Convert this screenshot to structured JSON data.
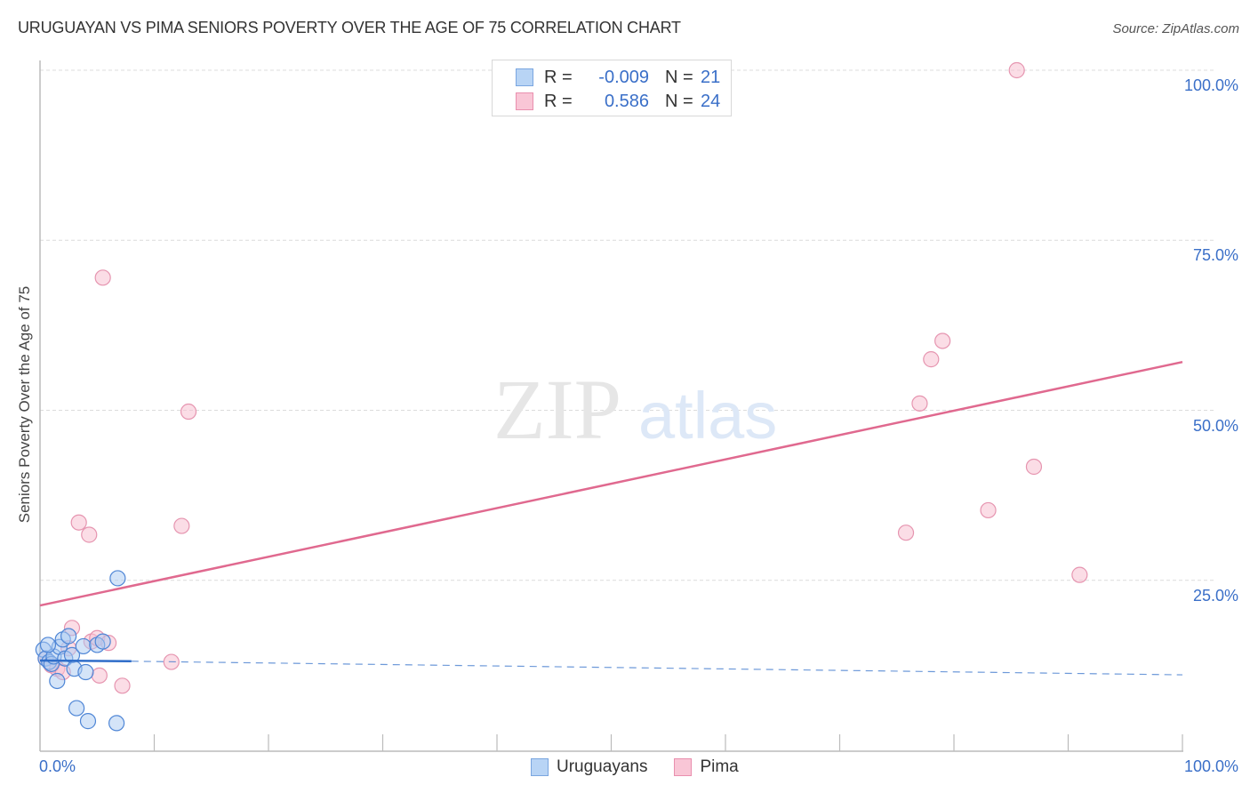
{
  "header": {
    "title": "URUGUAYAN VS PIMA SENIORS POVERTY OVER THE AGE OF 75 CORRELATION CHART",
    "source": "Source: ZipAtlas.com"
  },
  "watermark": {
    "zip": "ZIP",
    "atlas": "atlas"
  },
  "legend": {
    "rows": [
      {
        "r_label": "R =",
        "r_value": "-0.009",
        "n_label": "N =",
        "n_value": "21",
        "fill": "#b8d4f5",
        "stroke": "#7aa6e0"
      },
      {
        "r_label": "R =",
        "r_value": "0.586",
        "n_label": "N =",
        "n_value": "24",
        "fill": "#f9c6d6",
        "stroke": "#e98fae"
      }
    ]
  },
  "bottom_legend": [
    {
      "label": "Uruguayans",
      "fill": "#b8d4f5",
      "stroke": "#7aa6e0"
    },
    {
      "label": "Pima",
      "fill": "#f9c6d6",
      "stroke": "#e98fae"
    }
  ],
  "axes": {
    "x_min_label": "0.0%",
    "x_max_label": "100.0%",
    "y_ticks": [
      "100.0%",
      "75.0%",
      "50.0%",
      "25.0%"
    ],
    "ylabel": "Seniors Poverty Over the Age of 75"
  },
  "colors": {
    "blue_fill": "#a9c9f2",
    "blue_stroke": "#4f86d6",
    "blue_line": "#2f6dc9",
    "pink_fill": "#f7c1d2",
    "pink_stroke": "#e695b0",
    "pink_line": "#e0698f",
    "axis_text": "#3a6fc8",
    "grid": "#dcdcdc"
  },
  "chart_data": {
    "type": "scatter",
    "title": "URUGUAYAN VS PIMA SENIORS POVERTY OVER THE AGE OF 75 CORRELATION CHART",
    "xlabel": "",
    "ylabel": "Seniors Poverty Over the Age of 75",
    "xlim": [
      0,
      100
    ],
    "ylim": [
      0,
      100
    ],
    "x_tick_labels": [
      "0.0%",
      "100.0%"
    ],
    "y_tick_labels": [
      "25.0%",
      "50.0%",
      "75.0%",
      "100.0%"
    ],
    "grid": true,
    "legend_position": "bottom-center",
    "series": [
      {
        "name": "Uruguayans",
        "R": -0.009,
        "N": 21,
        "points": [
          [
            0.3,
            14.8
          ],
          [
            0.5,
            13.5
          ],
          [
            0.8,
            13.0
          ],
          [
            1.0,
            12.7
          ],
          [
            1.2,
            13.8
          ],
          [
            1.5,
            10.2
          ],
          [
            1.7,
            15.2
          ],
          [
            2.0,
            16.3
          ],
          [
            2.2,
            13.5
          ],
          [
            2.5,
            16.8
          ],
          [
            2.8,
            14.0
          ],
          [
            3.0,
            12.0
          ],
          [
            3.2,
            6.2
          ],
          [
            3.8,
            15.3
          ],
          [
            4.0,
            11.5
          ],
          [
            4.2,
            4.3
          ],
          [
            5.0,
            15.5
          ],
          [
            5.5,
            16.0
          ],
          [
            6.8,
            25.3
          ],
          [
            6.7,
            4.0
          ],
          [
            0.7,
            15.5
          ]
        ],
        "trend": {
          "x": [
            0,
            8,
            100
          ],
          "y": [
            13.2,
            13.1,
            11.1
          ],
          "solid_until_x": 8
        }
      },
      {
        "name": "Pima",
        "R": 0.586,
        "N": 24,
        "points": [
          [
            0.5,
            13.5
          ],
          [
            1.0,
            12.5
          ],
          [
            1.5,
            12.0
          ],
          [
            2.0,
            11.5
          ],
          [
            2.5,
            15.0
          ],
          [
            2.8,
            18.0
          ],
          [
            3.4,
            33.5
          ],
          [
            4.3,
            31.7
          ],
          [
            4.5,
            16.0
          ],
          [
            5.0,
            16.5
          ],
          [
            5.2,
            11.0
          ],
          [
            5.5,
            69.5
          ],
          [
            6.0,
            15.8
          ],
          [
            7.2,
            9.5
          ],
          [
            11.5,
            13.0
          ],
          [
            12.4,
            33.0
          ],
          [
            13.0,
            49.8
          ],
          [
            75.8,
            32.0
          ],
          [
            77.0,
            51.0
          ],
          [
            78.0,
            57.5
          ],
          [
            79.0,
            60.2
          ],
          [
            83.0,
            35.3
          ],
          [
            85.5,
            100.0
          ],
          [
            87.0,
            41.7
          ]
        ],
        "extra_points_note": "one additional visible point",
        "extra_points": [
          [
            91.0,
            25.8
          ]
        ],
        "trend": {
          "x": [
            0,
            100
          ],
          "y": [
            21.3,
            57.1
          ]
        }
      }
    ]
  }
}
